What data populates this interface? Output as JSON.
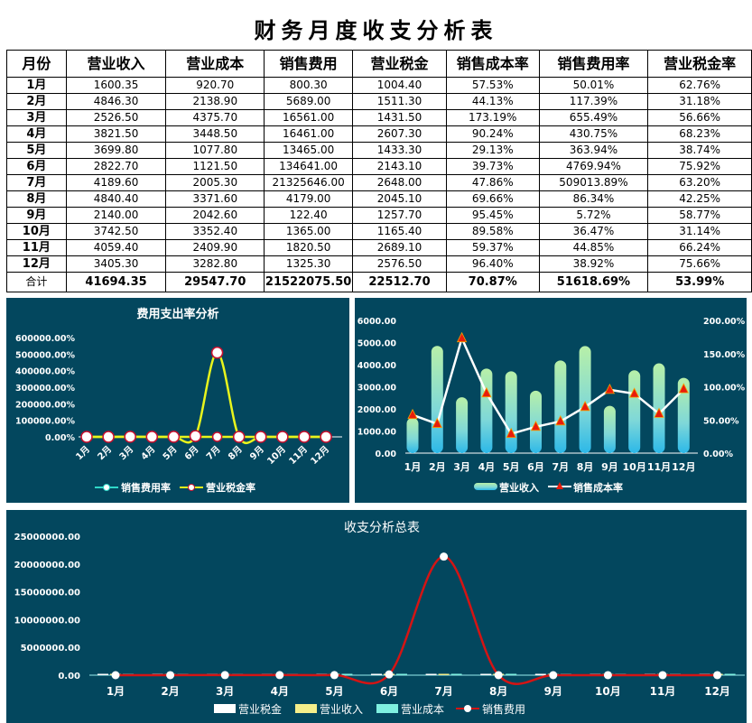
{
  "title": "财务月度收支分析表",
  "table": {
    "headers": [
      "月份",
      "营业收入",
      "营业成本",
      "销售费用",
      "营业税金",
      "销售成本率",
      "销售费用率",
      "营业税金率"
    ],
    "rows": [
      [
        "1月",
        "1600.35",
        "920.70",
        "800.30",
        "1004.40",
        "57.53%",
        "50.01%",
        "62.76%"
      ],
      [
        "2月",
        "4846.30",
        "2138.90",
        "5689.00",
        "1511.30",
        "44.13%",
        "117.39%",
        "31.18%"
      ],
      [
        "3月",
        "2526.50",
        "4375.70",
        "16561.00",
        "1431.50",
        "173.19%",
        "655.49%",
        "56.66%"
      ],
      [
        "4月",
        "3821.50",
        "3448.50",
        "16461.00",
        "2607.30",
        "90.24%",
        "430.75%",
        "68.23%"
      ],
      [
        "5月",
        "3699.80",
        "1077.80",
        "13465.00",
        "1433.30",
        "29.13%",
        "363.94%",
        "38.74%"
      ],
      [
        "6月",
        "2822.70",
        "1121.50",
        "134641.00",
        "2143.10",
        "39.73%",
        "4769.94%",
        "75.92%"
      ],
      [
        "7月",
        "4189.60",
        "2005.30",
        "21325646.00",
        "2648.00",
        "47.86%",
        "509013.89%",
        "63.20%"
      ],
      [
        "8月",
        "4840.40",
        "3371.60",
        "4179.00",
        "2045.10",
        "69.66%",
        "86.34%",
        "42.25%"
      ],
      [
        "9月",
        "2140.00",
        "2042.60",
        "122.40",
        "1257.70",
        "95.45%",
        "5.72%",
        "58.77%"
      ],
      [
        "10月",
        "3742.50",
        "3352.40",
        "1365.00",
        "1165.40",
        "89.58%",
        "36.47%",
        "31.14%"
      ],
      [
        "11月",
        "4059.40",
        "2409.90",
        "1820.50",
        "2689.10",
        "59.37%",
        "44.85%",
        "66.24%"
      ],
      [
        "12月",
        "3405.30",
        "3282.80",
        "1325.30",
        "2576.50",
        "96.40%",
        "38.92%",
        "75.66%"
      ]
    ],
    "total": [
      "合计",
      "41694.35",
      "29547.70",
      "21522075.50",
      "22512.70",
      "70.87%",
      "51618.69%",
      "53.99%"
    ]
  },
  "chart_data": [
    {
      "type": "line",
      "title": "费用支出率分析",
      "categories": [
        "1月",
        "2月",
        "3月",
        "4月",
        "5月",
        "6月",
        "7月",
        "8月",
        "9月",
        "10月",
        "11月",
        "12月"
      ],
      "ylim": [
        0,
        600000
      ],
      "yticks": [
        "0.00%",
        "100000.00%",
        "200000.00%",
        "300000.00%",
        "400000.00%",
        "500000.00%",
        "600000.00%"
      ],
      "legend": "bottom",
      "series": [
        {
          "name": "销售费用率",
          "color": "#2fd8c8",
          "values": [
            50.01,
            117.39,
            655.49,
            430.75,
            363.94,
            4769.94,
            509013.89,
            86.34,
            5.72,
            36.47,
            44.85,
            38.92
          ]
        },
        {
          "name": "营业税金率",
          "color": "#e8f51c",
          "values": [
            62.76,
            31.18,
            56.66,
            68.23,
            38.74,
            75.92,
            63.2,
            42.25,
            58.77,
            31.14,
            66.24,
            75.66
          ]
        }
      ]
    },
    {
      "type": "bar",
      "categories": [
        "1月",
        "2月",
        "3月",
        "4月",
        "5月",
        "6月",
        "7月",
        "8月",
        "9月",
        "10月",
        "11月",
        "12月"
      ],
      "ylim": [
        0,
        6000
      ],
      "yticks": [
        "0.00",
        "1000.00",
        "2000.00",
        "3000.00",
        "4000.00",
        "5000.00",
        "6000.00"
      ],
      "y2lim": [
        0,
        200
      ],
      "y2ticks": [
        "0.00%",
        "50.00%",
        "100.00%",
        "150.00%",
        "200.00%"
      ],
      "legend": "bottom",
      "series": [
        {
          "name": "营业收入",
          "type": "bar",
          "color": "#9fe8b4",
          "values": [
            1600.35,
            4846.3,
            2526.5,
            3821.5,
            3699.8,
            2822.7,
            4189.6,
            4840.4,
            2140.0,
            3742.5,
            4059.4,
            3405.3
          ]
        },
        {
          "name": "销售成本率",
          "type": "line",
          "axis": "right",
          "color": "#ffffff",
          "marker_color": "#e81c0c",
          "values": [
            57.53,
            44.13,
            173.19,
            90.24,
            29.13,
            39.73,
            47.86,
            69.66,
            95.45,
            89.58,
            59.37,
            96.4
          ]
        }
      ]
    },
    {
      "type": "line",
      "title": "收支分析总表",
      "categories": [
        "1月",
        "2月",
        "3月",
        "4月",
        "5月",
        "6月",
        "7月",
        "8月",
        "9月",
        "10月",
        "11月",
        "12月"
      ],
      "ylim": [
        0,
        25000000
      ],
      "yticks": [
        "0.00",
        "5000000.00",
        "10000000.00",
        "15000000.00",
        "20000000.00",
        "25000000.00"
      ],
      "legend": "bottom",
      "series": [
        {
          "name": "营业税金",
          "type": "bar",
          "color": "#ffffff",
          "values": [
            1004.4,
            1511.3,
            1431.5,
            2607.3,
            1433.3,
            2143.1,
            2648.0,
            2045.1,
            1257.7,
            1165.4,
            2689.1,
            2576.5
          ]
        },
        {
          "name": "营业收入",
          "type": "bar",
          "color": "#f5ee8a",
          "values": [
            1600.35,
            4846.3,
            2526.5,
            3821.5,
            3699.8,
            2822.7,
            4189.6,
            4840.4,
            2140.0,
            3742.5,
            4059.4,
            3405.3
          ]
        },
        {
          "name": "营业成本",
          "type": "bar",
          "color": "#7ff0e0",
          "values": [
            920.7,
            2138.9,
            4375.7,
            3448.5,
            1077.8,
            1121.5,
            2005.3,
            3371.6,
            2042.6,
            3352.4,
            2409.9,
            3282.8
          ]
        },
        {
          "name": "销售费用",
          "type": "line",
          "color": "#d41414",
          "values": [
            800.3,
            5689.0,
            16561.0,
            16461.0,
            13465.0,
            134641.0,
            21325646.0,
            4179.0,
            122.4,
            1365.0,
            1820.5,
            1325.3
          ]
        }
      ]
    }
  ]
}
